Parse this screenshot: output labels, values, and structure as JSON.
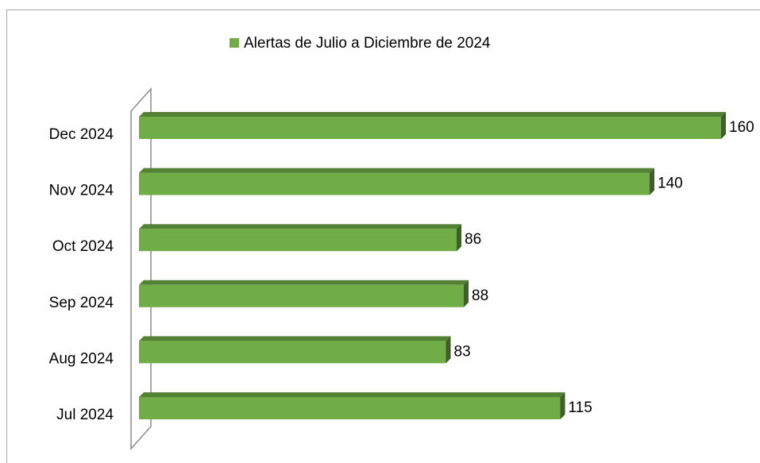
{
  "chart_data": {
    "type": "bar3d_horizontal",
    "categories": [
      "Jul 2024",
      "Aug 2024",
      "Sep 2024",
      "Oct 2024",
      "Nov 2024",
      "Dec 2024"
    ],
    "series": [
      {
        "name": "Alertas de Julio a Diciembre de 2024",
        "color": "#70ad47",
        "values": [
          115,
          83,
          88,
          86,
          140,
          160
        ]
      }
    ],
    "legend": "top",
    "data_labels": true
  }
}
